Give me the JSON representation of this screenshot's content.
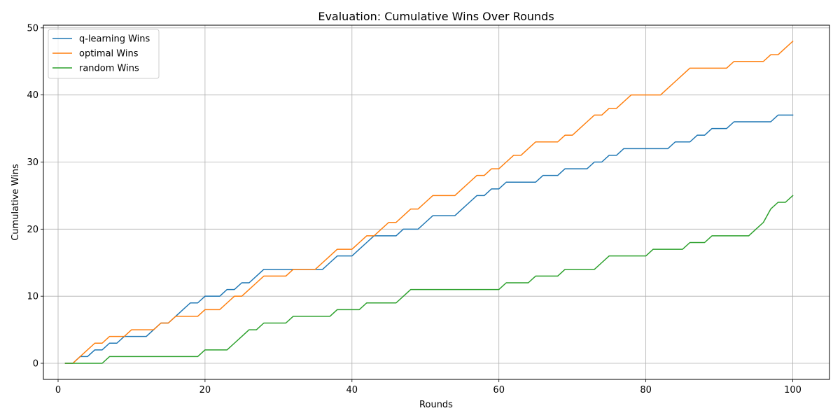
{
  "chart_data": {
    "type": "line",
    "title": "Evaluation: Cumulative Wins Over Rounds",
    "xlabel": "Rounds",
    "ylabel": "Cumulative Wins",
    "xlim": [
      -2,
      105
    ],
    "ylim": [
      -2.4,
      50.4
    ],
    "xticks": [
      0,
      20,
      40,
      60,
      80,
      100
    ],
    "yticks": [
      0,
      10,
      20,
      30,
      40,
      50
    ],
    "grid": true,
    "legend_position": "top-left",
    "x": [
      1,
      2,
      3,
      4,
      5,
      6,
      7,
      8,
      9,
      10,
      11,
      12,
      13,
      14,
      15,
      16,
      17,
      18,
      19,
      20,
      21,
      22,
      23,
      24,
      25,
      26,
      27,
      28,
      29,
      30,
      31,
      32,
      33,
      34,
      35,
      36,
      37,
      38,
      39,
      40,
      41,
      42,
      43,
      44,
      45,
      46,
      47,
      48,
      49,
      50,
      51,
      52,
      53,
      54,
      55,
      56,
      57,
      58,
      59,
      60,
      61,
      62,
      63,
      64,
      65,
      66,
      67,
      68,
      69,
      70,
      71,
      72,
      73,
      74,
      75,
      76,
      77,
      78,
      79,
      80,
      81,
      82,
      83,
      84,
      85,
      86,
      87,
      88,
      89,
      90,
      91,
      92,
      93,
      94,
      95,
      96,
      97,
      98,
      99,
      100
    ],
    "series": [
      {
        "name": "q-learning Wins",
        "color": "#1f77b4",
        "values": [
          0,
          0,
          1,
          1,
          2,
          2,
          3,
          3,
          4,
          4,
          4,
          4,
          5,
          6,
          6,
          7,
          8,
          9,
          9,
          10,
          10,
          10,
          11,
          11,
          12,
          12,
          13,
          14,
          14,
          14,
          14,
          14,
          14,
          14,
          14,
          14,
          15,
          16,
          16,
          16,
          17,
          18,
          19,
          19,
          19,
          19,
          20,
          20,
          20,
          21,
          22,
          22,
          22,
          22,
          23,
          24,
          25,
          25,
          26,
          26,
          27,
          27,
          27,
          27,
          27,
          28,
          28,
          28,
          29,
          29,
          29,
          29,
          30,
          30,
          31,
          31,
          32,
          32,
          32,
          32,
          32,
          32,
          32,
          33,
          33,
          33,
          34,
          34,
          35,
          35,
          35,
          36,
          36,
          36,
          36,
          36,
          36,
          37,
          37,
          37
        ]
      },
      {
        "name": "optimal Wins",
        "color": "#ff7f0e",
        "values": [
          0,
          0,
          1,
          2,
          3,
          3,
          4,
          4,
          4,
          5,
          5,
          5,
          5,
          6,
          6,
          7,
          7,
          7,
          7,
          8,
          8,
          8,
          9,
          10,
          10,
          11,
          12,
          13,
          13,
          13,
          13,
          14,
          14,
          14,
          14,
          15,
          16,
          17,
          17,
          17,
          18,
          19,
          19,
          20,
          21,
          21,
          22,
          23,
          23,
          24,
          25,
          25,
          25,
          25,
          26,
          27,
          28,
          28,
          29,
          29,
          30,
          31,
          31,
          32,
          33,
          33,
          33,
          33,
          34,
          34,
          35,
          36,
          37,
          37,
          38,
          38,
          39,
          40,
          40,
          40,
          40,
          40,
          41,
          42,
          43,
          44,
          44,
          44,
          44,
          44,
          44,
          45,
          45,
          45,
          45,
          45,
          46,
          46,
          47,
          48
        ]
      },
      {
        "name": "random Wins",
        "color": "#2ca02c",
        "values": [
          0,
          0,
          0,
          0,
          0,
          0,
          1,
          1,
          1,
          1,
          1,
          1,
          1,
          1,
          1,
          1,
          1,
          1,
          1,
          2,
          2,
          2,
          2,
          3,
          4,
          5,
          5,
          6,
          6,
          6,
          6,
          7,
          7,
          7,
          7,
          7,
          7,
          8,
          8,
          8,
          8,
          9,
          9,
          9,
          9,
          9,
          10,
          11,
          11,
          11,
          11,
          11,
          11,
          11,
          11,
          11,
          11,
          11,
          11,
          11,
          12,
          12,
          12,
          12,
          13,
          13,
          13,
          13,
          14,
          14,
          14,
          14,
          14,
          15,
          16,
          16,
          16,
          16,
          16,
          16,
          17,
          17,
          17,
          17,
          17,
          18,
          18,
          18,
          19,
          19,
          19,
          19,
          19,
          19,
          20,
          21,
          23,
          24,
          24,
          25
        ]
      }
    ]
  }
}
